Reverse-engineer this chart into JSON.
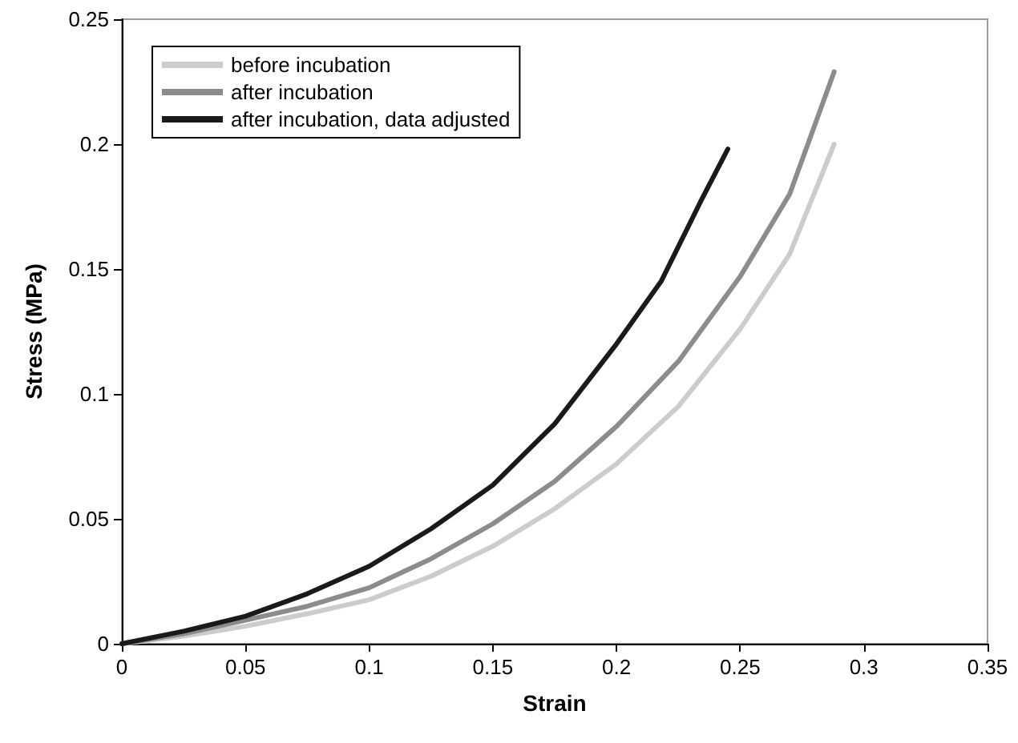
{
  "chart_data": {
    "type": "line",
    "xlabel": "Strain",
    "ylabel": "Stress (MPa)",
    "xlim": [
      0,
      0.35
    ],
    "xticks": [
      0,
      0.05,
      0.1,
      0.15,
      0.2,
      0.25,
      0.3,
      0.35
    ],
    "ylim": [
      0,
      0.25
    ],
    "yticks": [
      0,
      0.05,
      0.1,
      0.15,
      0.2,
      0.25
    ],
    "grid": false,
    "legend": "top left",
    "marker": "none",
    "line_style": "solid",
    "series": [
      {
        "name": "before incubation",
        "color": "#cccccc",
        "x": [
          0,
          0.025,
          0.05,
          0.075,
          0.1,
          0.125,
          0.15,
          0.175,
          0.2,
          0.225,
          0.25,
          0.27,
          0.288
        ],
        "values": [
          0,
          0.003,
          0.007,
          0.012,
          0.0176,
          0.027,
          0.039,
          0.054,
          0.072,
          0.095,
          0.126,
          0.156,
          0.2
        ]
      },
      {
        "name": "after incubation",
        "color": "#8c8c8c",
        "x": [
          0,
          0.025,
          0.05,
          0.075,
          0.1,
          0.125,
          0.15,
          0.175,
          0.2,
          0.225,
          0.25,
          0.27,
          0.288
        ],
        "values": [
          0,
          0.004,
          0.0094,
          0.015,
          0.0224,
          0.034,
          0.048,
          0.065,
          0.087,
          0.113,
          0.147,
          0.18,
          0.229
        ]
      },
      {
        "name": "after incubation, data adjusted",
        "color": "#1a1a1a",
        "x": [
          0,
          0.025,
          0.05,
          0.075,
          0.1,
          0.125,
          0.15,
          0.175,
          0.2,
          0.218,
          0.2345,
          0.245
        ],
        "values": [
          0,
          0.005,
          0.011,
          0.02,
          0.031,
          0.046,
          0.0635,
          0.088,
          0.12,
          0.145,
          0.178,
          0.198
        ]
      }
    ]
  }
}
